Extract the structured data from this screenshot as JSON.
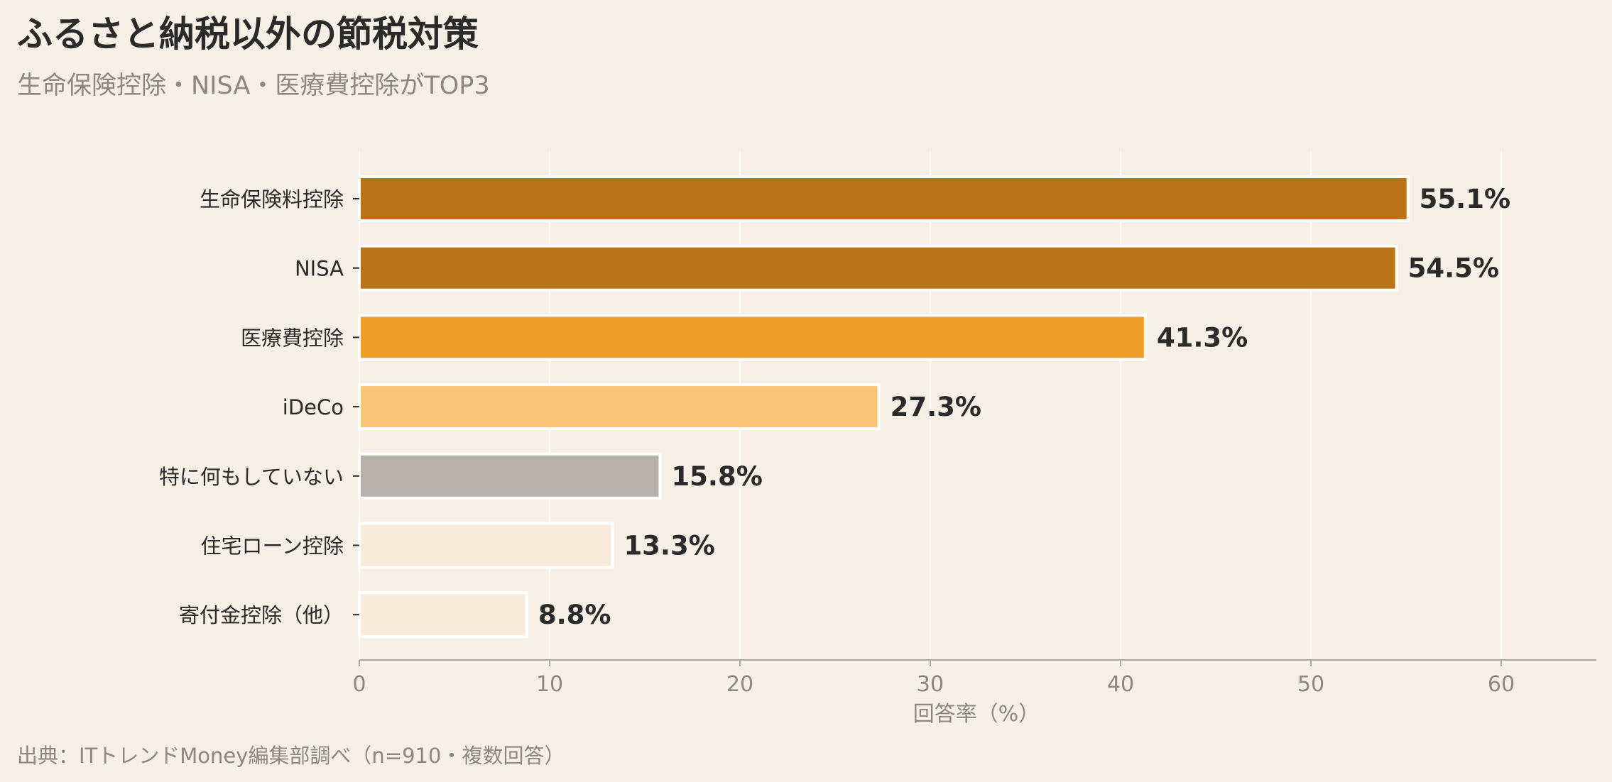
{
  "chart_data": {
    "type": "bar",
    "orientation": "horizontal",
    "title": "ふるさと納税以外の節税対策",
    "subtitle": "生命保険控除・NISA・医療費控除がTOP3",
    "source": "出典：ITトレンドMoney編集部調べ（n=910・複数回答）",
    "xlabel": "回答率（%）",
    "ylabel": "",
    "xlim": [
      0,
      65
    ],
    "xticks": [
      0,
      10,
      20,
      30,
      40,
      50,
      60
    ],
    "grid": "vertical",
    "categories": [
      "生命保険料控除",
      "NISA",
      "医療費控除",
      "iDeCo",
      "特に何もしていない",
      "住宅ローン控除",
      "寄付金控除（他）"
    ],
    "values": [
      55.1,
      54.5,
      41.3,
      27.3,
      15.8,
      13.3,
      8.8
    ],
    "value_labels": [
      "55.1%",
      "54.5%",
      "41.3%",
      "27.3%",
      "15.8%",
      "13.3%",
      "8.8%"
    ],
    "colors": [
      "#b87416",
      "#b87416",
      "#ef9f2c",
      "#f9c679",
      "#b6b1aa",
      "#f8ebd9",
      "#f8ebd9"
    ]
  },
  "colors": {
    "background": "#f5efe5",
    "grid": "#ffffff",
    "axis": "#a8a49e",
    "bar_outline": "#ffffff"
  }
}
